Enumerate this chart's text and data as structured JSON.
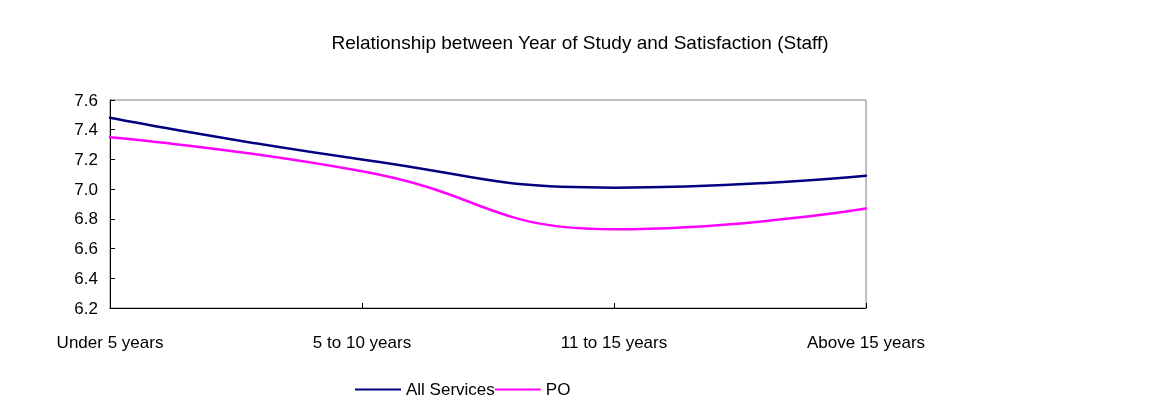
{
  "chart_data": {
    "type": "line",
    "title": "Relationship between Year of Study and Satisfaction (Staff)",
    "categories": [
      "Under 5 years",
      "5 to 10 years",
      "11 to 15 years",
      "Above 15 years"
    ],
    "series": [
      {
        "name": "All Services",
        "color": "#000080",
        "values": [
          7.48,
          7.2,
          7.01,
          7.09
        ]
      },
      {
        "name": "PO",
        "color": "#ff00ff",
        "values": [
          7.35,
          7.12,
          6.73,
          6.87
        ]
      }
    ],
    "ylim": [
      6.2,
      7.6
    ],
    "yticks": [
      6.2,
      6.4,
      6.6,
      6.8,
      {
        "value": 7,
        "label": "7.0"
      },
      7.2,
      7.4,
      7.6
    ],
    "grid": false,
    "legend": "bottom",
    "marker": "none",
    "line_style": "solid"
  }
}
